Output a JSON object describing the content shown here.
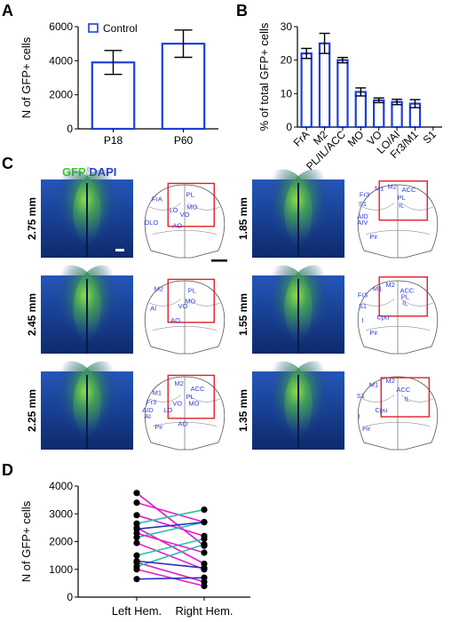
{
  "panels": {
    "A": "A",
    "B": "B",
    "C": "C",
    "D": "D"
  },
  "chart_data": [
    {
      "panel": "A",
      "type": "bar",
      "categories": [
        "P18",
        "P60"
      ],
      "series": [
        {
          "name": "Control",
          "values": [
            3900,
            5000
          ],
          "errors": [
            700,
            800
          ]
        }
      ],
      "ylabel": "N of GFP+ cells",
      "yticks": [
        0,
        2000,
        4000,
        6000
      ],
      "ylim": [
        0,
        6000
      ],
      "legend": "top-left",
      "color": "#1f3fd6"
    },
    {
      "panel": "B",
      "type": "bar",
      "categories": [
        "FrA",
        "M2",
        "PL/IL/ACC",
        "MO",
        "VO",
        "LO/AI",
        "Fr3/M1",
        "S1"
      ],
      "values": [
        22,
        25,
        20,
        10.5,
        8,
        7.5,
        7,
        0
      ],
      "errors": [
        1.5,
        3,
        0.8,
        1.2,
        0.7,
        0.8,
        1.2,
        0
      ],
      "ylabel": "% of total GFP+ cells",
      "yticks": [
        0,
        10,
        20,
        30
      ],
      "ylim": [
        0,
        30
      ],
      "color": "#1f3fd6"
    },
    {
      "panel": "D",
      "type": "line",
      "categories": [
        "Left Hem.",
        "Right Hem."
      ],
      "ylabel": "N of GFP+ cells",
      "yticks": [
        0,
        1000,
        2000,
        3000,
        4000
      ],
      "ylim": [
        0,
        4000
      ],
      "pairs": [
        {
          "left": 3750,
          "right": 1850,
          "color": "#e020c8"
        },
        {
          "left": 3400,
          "right": 2700,
          "color": "#e020c8"
        },
        {
          "left": 2950,
          "right": 2200,
          "color": "#e020c8"
        },
        {
          "left": 2500,
          "right": 1200,
          "color": "#e020c8"
        },
        {
          "left": 1950,
          "right": 1000,
          "color": "#e020c8"
        },
        {
          "left": 1250,
          "right": 550,
          "color": "#e020c8"
        },
        {
          "left": 1000,
          "right": 400,
          "color": "#e020c8"
        },
        {
          "left": 2650,
          "right": 3150,
          "color": "#2cc0a8"
        },
        {
          "left": 2150,
          "right": 2700,
          "color": "#2cc0a8"
        },
        {
          "left": 1500,
          "right": 2100,
          "color": "#2cc0a8"
        },
        {
          "left": 1100,
          "right": 1900,
          "color": "#2cc0a8"
        },
        {
          "left": 2450,
          "right": 2700,
          "color": "#2030c0"
        },
        {
          "left": 1300,
          "right": 1050,
          "color": "#2030c0"
        },
        {
          "left": 650,
          "right": 700,
          "color": "#2030c0"
        },
        {
          "left": 2300,
          "right": 1600,
          "color": "#e020c8"
        }
      ]
    }
  ],
  "panelC": {
    "title_gfp": "GFP",
    "title_sep": "/",
    "title_dapi": "DAPI",
    "sections": [
      {
        "mm": "2.75 mm",
        "regions": [
          "FrA",
          "PL",
          "LO",
          "MO",
          "VO",
          "DLO",
          "AO"
        ]
      },
      {
        "mm": "2.45 mm",
        "regions": [
          "M2",
          "PL",
          "MO",
          "AI",
          "VO",
          "AO"
        ]
      },
      {
        "mm": "2.25 mm",
        "regions": [
          "M2",
          "ACC",
          "M1",
          "PL",
          "Fr3",
          "VO",
          "MO",
          "AID",
          "LO",
          "AI",
          "Pir",
          "AO"
        ]
      },
      {
        "mm": "1.85 mm",
        "regions": [
          "M2",
          "M1",
          "ACC",
          "Fr3",
          "S1",
          "PL",
          "IL",
          "AID",
          "AIV",
          "Pir"
        ]
      },
      {
        "mm": "1.55 mm",
        "regions": [
          "M2",
          "M1",
          "ACC",
          "Fr3",
          "PL",
          "S1",
          "IL",
          "Cpu",
          "I",
          "Pir"
        ]
      },
      {
        "mm": "1.35 mm",
        "regions": [
          "M2",
          "M1",
          "ACC",
          "S1",
          "IL",
          "Cpu",
          "I",
          "Pir"
        ]
      }
    ]
  }
}
